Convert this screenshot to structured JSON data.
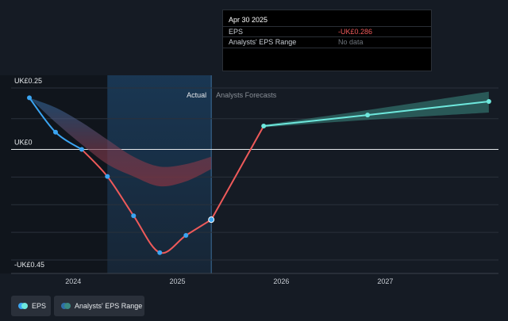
{
  "colors": {
    "background": "#151b24",
    "actual_line": "#3ba5f2",
    "loss_line": "#ee5a5a",
    "forecast_line": "#6ee8dd",
    "forecast_band": "#3a8a82",
    "highlight_region": "#1a3a58",
    "tooltip_negative": "#f05a5a"
  },
  "tooltip": {
    "date": "Apr 30 2025",
    "rows": [
      {
        "label": "EPS",
        "value": "-UK£0.286"
      },
      {
        "label": "Analysts' EPS Range",
        "value": "No data"
      }
    ]
  },
  "legend": {
    "eps": "EPS",
    "range": "Analysts' EPS Range"
  },
  "chart_data": {
    "type": "line",
    "y_labels": {
      "top": "UK£0.25",
      "zero": "UK£0",
      "bottom": "-UK£0.45"
    },
    "x_ticks": [
      "2024",
      "2025",
      "2026",
      "2027"
    ],
    "section_labels": {
      "actual": "Actual",
      "forecast": "Analysts Forecasts"
    },
    "ylim": [
      -0.45,
      0.25
    ],
    "x_start": "2023-07-31",
    "x_end": "2028-01-31",
    "series": [
      {
        "name": "EPS",
        "role": "actual",
        "points": [
          {
            "date": "2023-07-31",
            "value": 0.21
          },
          {
            "date": "2023-10-31",
            "value": 0.07
          },
          {
            "date": "2024-01-31",
            "value": 0.0
          },
          {
            "date": "2024-04-30",
            "value": -0.11
          },
          {
            "date": "2024-07-31",
            "value": -0.27
          },
          {
            "date": "2024-10-31",
            "value": -0.42
          },
          {
            "date": "2025-01-31",
            "value": -0.35
          },
          {
            "date": "2025-04-30",
            "value": -0.286
          }
        ]
      },
      {
        "name": "Forecast",
        "role": "forecast",
        "points": [
          {
            "date": "2025-04-30",
            "value": -0.286
          },
          {
            "date": "2025-10-31",
            "value": 0.095
          },
          {
            "date": "2026-10-31",
            "value": 0.14
          },
          {
            "date": "2027-12-31",
            "value": 0.195
          }
        ]
      }
    ],
    "analyst_range_actual_period": {
      "dates": [
        "2023-07-31",
        "2023-10-31",
        "2024-01-31",
        "2024-04-30",
        "2024-07-31",
        "2024-10-31",
        "2025-01-31",
        "2025-04-30"
      ],
      "upper": [
        0.21,
        0.17,
        0.11,
        0.04,
        -0.03,
        -0.07,
        -0.06,
        -0.03
      ],
      "lower": [
        0.21,
        0.11,
        0.02,
        -0.06,
        -0.11,
        -0.15,
        -0.13,
        -0.08
      ]
    },
    "analyst_range_forecast": {
      "dates": [
        "2025-10-31",
        "2026-10-31",
        "2027-12-31"
      ],
      "upper": [
        0.1,
        0.16,
        0.235
      ],
      "lower": [
        0.09,
        0.12,
        0.15
      ]
    },
    "highlight_start": "2024-04-30",
    "highlight_end": "2025-04-30",
    "grid": true
  }
}
